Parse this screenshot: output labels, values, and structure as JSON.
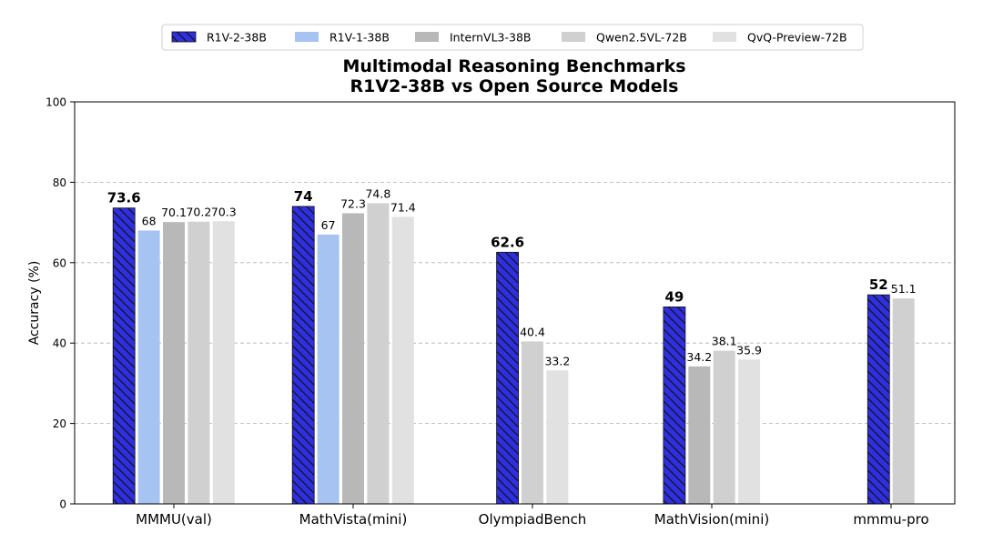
{
  "chart_data": {
    "type": "bar",
    "title": "Multimodal Reasoning Benchmarks",
    "subtitle": "R1V2-38B vs Open Source Models",
    "xlabel": "",
    "ylabel": "Accuracy (%)",
    "ylim": [
      0,
      100
    ],
    "yticks": [
      "0",
      "20",
      "40",
      "60",
      "80",
      "100"
    ],
    "grid": "horizontal dashed",
    "legend_position": "top-center",
    "categories": [
      "MMMU(val)",
      "MathVista(mini)",
      "OlympiadBench",
      "MathVision(mini)",
      "mmmu-pro"
    ],
    "series": [
      {
        "name": "R1V-2-38B",
        "color": "#2f2fe0",
        "hatched": true,
        "bold_labels": true,
        "values": [
          73.6,
          74,
          62.6,
          49,
          52
        ],
        "labels": [
          "73.6",
          "74",
          "62.6",
          "49",
          "52"
        ]
      },
      {
        "name": "R1V-1-38B",
        "color": "#a7c3f2",
        "values": [
          68,
          67,
          null,
          null,
          null
        ],
        "labels": [
          "68",
          "67",
          "",
          "",
          ""
        ]
      },
      {
        "name": "InternVL3-38B",
        "color": "#b8b8b8",
        "values": [
          70.1,
          72.3,
          null,
          34.2,
          null
        ],
        "labels": [
          "70.1",
          "72.3",
          "",
          "34.2",
          ""
        ]
      },
      {
        "name": "Qwen2.5VL-72B",
        "color": "#d0d0d0",
        "values": [
          70.2,
          74.8,
          40.4,
          38.1,
          51.1
        ],
        "labels": [
          "70.2",
          "74.8",
          "40.4",
          "38.1",
          "51.1"
        ]
      },
      {
        "name": "QvQ-Preview-72B",
        "color": "#e0e1e0",
        "values": [
          70.3,
          71.4,
          33.2,
          35.9,
          null
        ],
        "labels": [
          "70.3",
          "71.4",
          "33.2",
          "35.9",
          ""
        ]
      }
    ]
  }
}
